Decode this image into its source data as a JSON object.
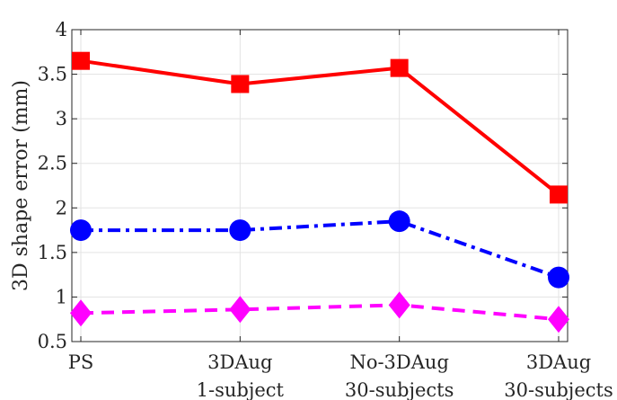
{
  "chart_data": {
    "type": "line",
    "title": "",
    "xlabel": "",
    "ylabel": "3D shape error (mm)",
    "ylim": [
      0.5,
      4
    ],
    "yticks": [
      "0.5",
      "1",
      "1.5",
      "2",
      "2.5",
      "3",
      "3.5",
      "4"
    ],
    "grid": true,
    "categories": [
      [
        "PS"
      ],
      [
        "3DAug",
        "1-subject"
      ],
      [
        "No-3DAug",
        "30-subjects"
      ],
      [
        "3DAug",
        "30-subjects"
      ]
    ],
    "series": [
      {
        "values": [
          3.65,
          3.39,
          3.57,
          2.15
        ],
        "color": "#ff0000",
        "marker": "square",
        "line_style": "solid"
      },
      {
        "values": [
          1.75,
          1.75,
          1.85,
          1.22
        ],
        "color": "#0000ff",
        "marker": "circle",
        "line_style": "dash-dot"
      },
      {
        "values": [
          0.82,
          0.86,
          0.91,
          0.75
        ],
        "color": "#ff00ff",
        "marker": "diamond",
        "line_style": "dashed"
      }
    ]
  }
}
